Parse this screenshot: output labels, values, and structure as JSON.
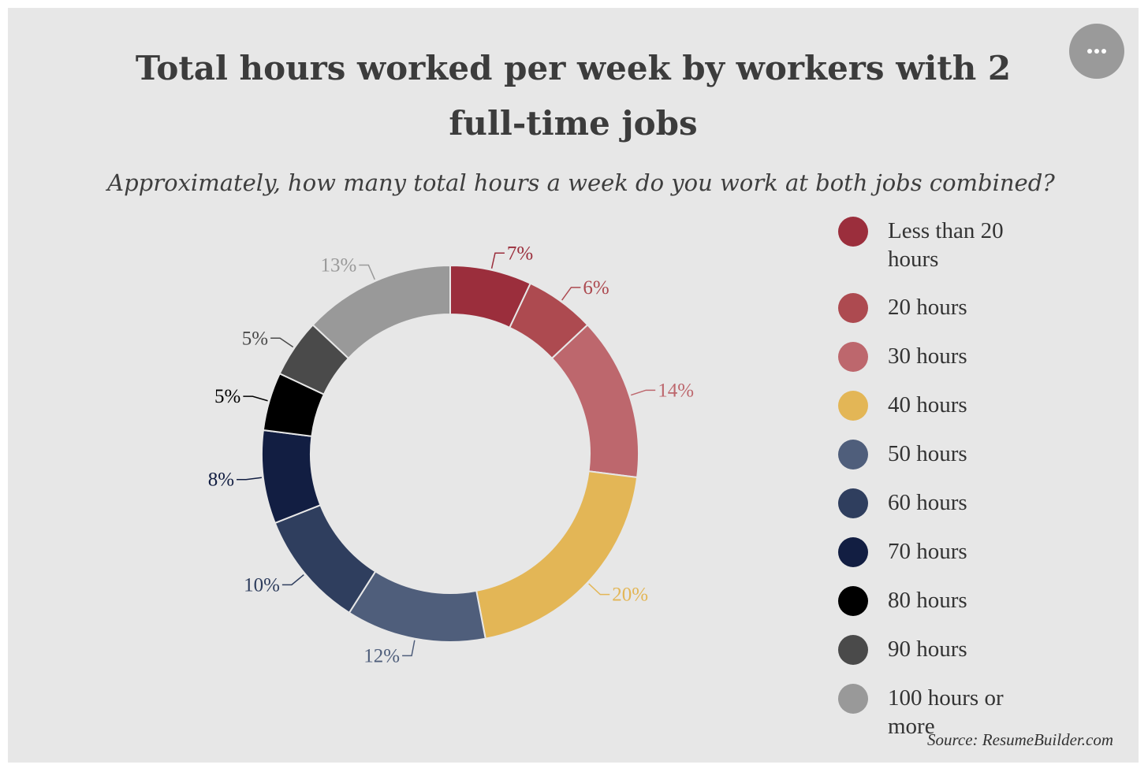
{
  "chart_data": {
    "type": "pie",
    "variant": "donut",
    "title": "Total hours worked per week by workers with 2 full-time jobs",
    "subtitle": "Approximately, how many total hours a week do you work at both jobs combined?",
    "categories": [
      "Less than 20 hours",
      "20 hours",
      "30 hours",
      "40 hours",
      "50 hours",
      "60 hours",
      "70 hours",
      "80 hours",
      "90 hours",
      "100 hours or more"
    ],
    "values": [
      7,
      6,
      14,
      20,
      12,
      10,
      8,
      5,
      5,
      13
    ],
    "value_labels": [
      "7%",
      "6%",
      "14%",
      "20%",
      "12%",
      "10%",
      "8%",
      "5%",
      "5%",
      "13%"
    ],
    "colors": [
      "#9b2e3c",
      "#ad4a50",
      "#bd676d",
      "#e3b656",
      "#4f5e7b",
      "#2f3e5e",
      "#121e42",
      "#000000",
      "#4a4a4a",
      "#999999"
    ],
    "label_colors": [
      "#9b2e3c",
      "#ad4a50",
      "#bd676d",
      "#e3b656",
      "#4f5e7b",
      "#2f3e5e",
      "#121e42",
      "#000000",
      "#4a4a4a",
      "#999999"
    ],
    "legend": "right",
    "source": "Source: ResumeBuilder.com"
  },
  "ui": {
    "menu_icon": "ellipsis-icon"
  }
}
